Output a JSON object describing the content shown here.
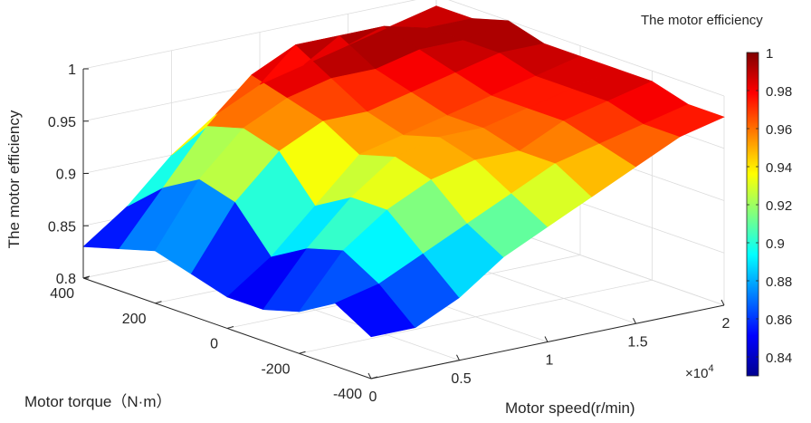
{
  "chart_data": {
    "type": "surface",
    "zlabel": "The motor efficiency",
    "xlabel": "Motor speed(r/min)",
    "ylabel": "Motor torque（N·m）",
    "x_multiplier": "×10",
    "x_multiplier_exp": "4",
    "xlim": [
      0,
      2
    ],
    "ylim": [
      -400,
      400
    ],
    "zlim": [
      0.8,
      1.0
    ],
    "x_ticks": [
      "0",
      "0.5",
      "1",
      "1.5",
      "2"
    ],
    "y_ticks": [
      "-400",
      "-200",
      "0",
      "200",
      "400"
    ],
    "z_ticks": [
      "0.8",
      "0.85",
      "0.9",
      "0.95",
      "1"
    ],
    "colorbar": {
      "title": "The motor efficiency",
      "range": [
        0.83,
        1.0
      ],
      "ticks": [
        "0.84",
        "0.86",
        "0.88",
        "0.9",
        "0.92",
        "0.94",
        "0.96",
        "0.98",
        "1"
      ],
      "colormap": "jet"
    },
    "grid": true,
    "surface_speed": [
      0.0,
      0.25,
      0.5,
      0.75,
      1.0,
      1.25,
      1.5,
      1.75,
      2.0
    ],
    "surface_torque": [
      -400,
      -300,
      -200,
      -100,
      0,
      100,
      200,
      300,
      400
    ],
    "surface_efficiency": [
      [
        0.84,
        0.84,
        0.86,
        0.89,
        0.91,
        0.93,
        0.95,
        0.97,
        0.98
      ],
      [
        0.86,
        0.87,
        0.89,
        0.91,
        0.93,
        0.95,
        0.96,
        0.97,
        0.98
      ],
      [
        0.84,
        0.89,
        0.92,
        0.94,
        0.95,
        0.95,
        0.97,
        0.98,
        0.99
      ],
      [
        0.83,
        0.88,
        0.92,
        0.95,
        0.96,
        0.96,
        0.97,
        0.98,
        0.99
      ],
      [
        0.83,
        0.86,
        0.9,
        0.94,
        0.95,
        0.96,
        0.97,
        0.98,
        0.99
      ],
      [
        0.84,
        0.9,
        0.94,
        0.96,
        0.96,
        0.97,
        0.98,
        0.99,
        0.99
      ],
      [
        0.85,
        0.91,
        0.95,
        0.97,
        0.98,
        0.98,
        0.99,
        0.99,
        1.0
      ],
      [
        0.84,
        0.89,
        0.94,
        0.98,
        1.0,
        1.0,
        1.0,
        0.99,
        0.99
      ],
      [
        0.83,
        0.86,
        0.9,
        0.93,
        0.95,
        0.96,
        0.97,
        0.98,
        0.99
      ]
    ]
  }
}
